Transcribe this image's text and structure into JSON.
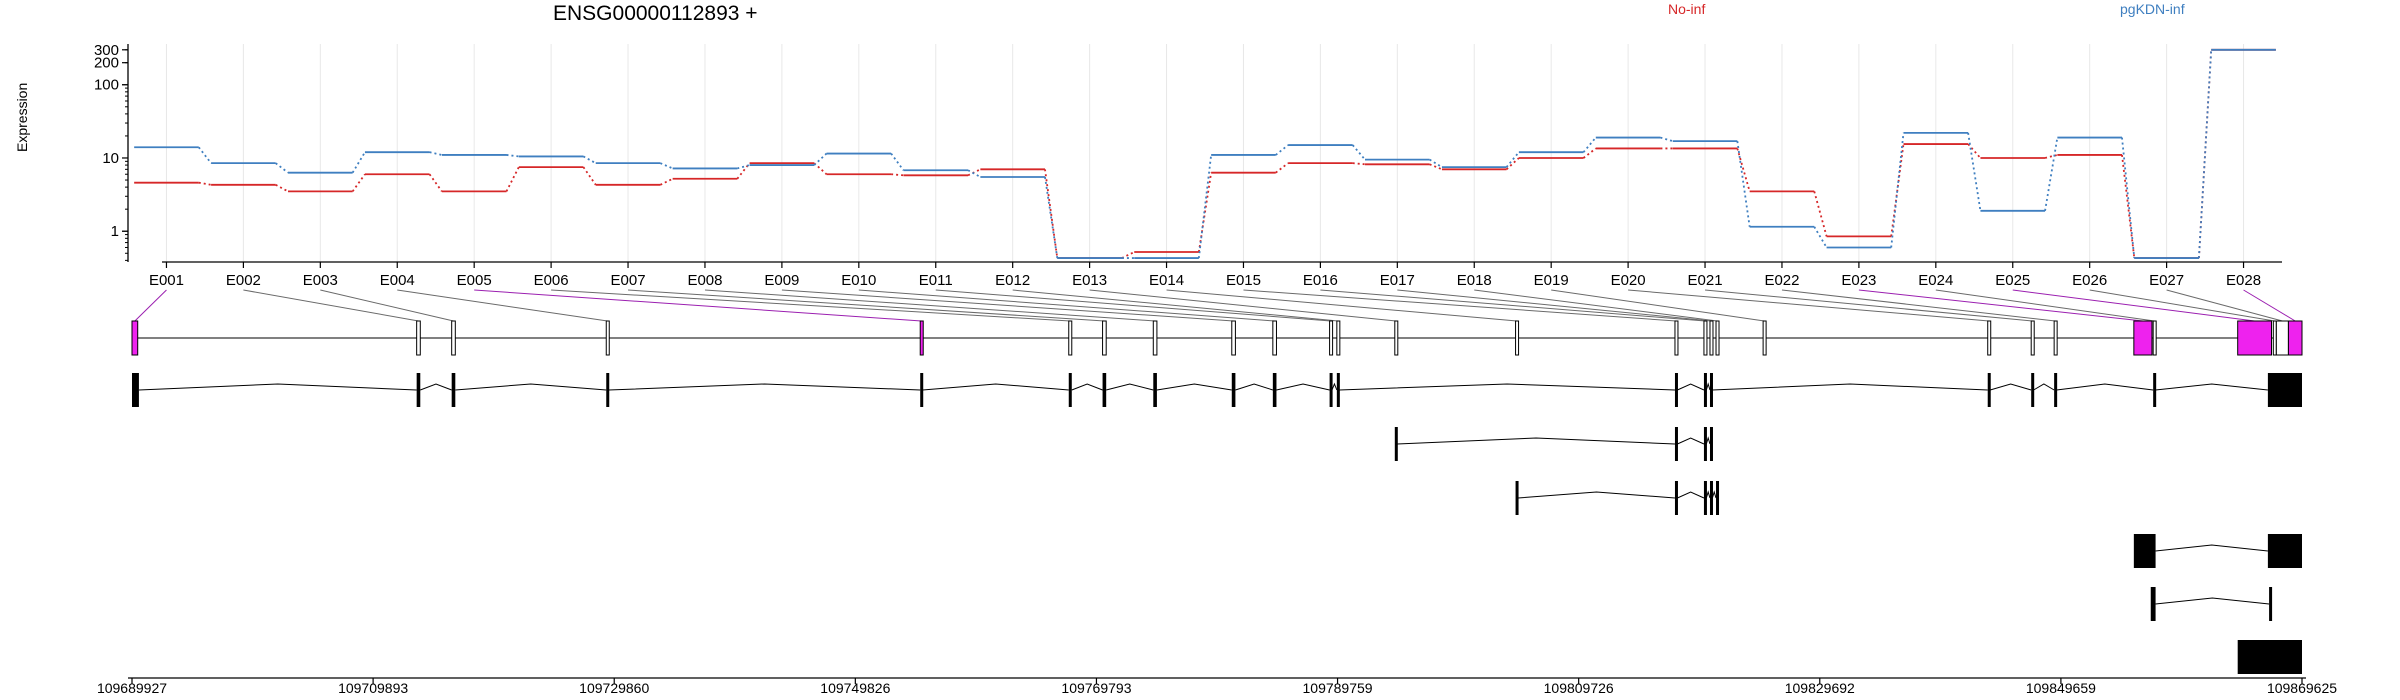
{
  "title": "ENSG00000112893 +",
  "ylabel": "Expression",
  "legend": [
    {
      "label": "No-inf",
      "color": "#d62728"
    },
    {
      "label": "pgKDN-inf",
      "color": "#3f7fc0"
    }
  ],
  "chart_data": {
    "type": "line",
    "title": "ENSG00000112893 +",
    "ylabel": "Expression",
    "yscale": "log",
    "ylim": [
      0.38,
      360
    ],
    "yticks": [
      1,
      10,
      100,
      200,
      300
    ],
    "yticklabels": [
      "1",
      "10",
      "100",
      "200",
      "300"
    ],
    "categories": [
      "E001",
      "E002",
      "E003",
      "E004",
      "E005",
      "E006",
      "E007",
      "E008",
      "E009",
      "E010",
      "E011",
      "E012",
      "E013",
      "E014",
      "E015",
      "E016",
      "E017",
      "E018",
      "E019",
      "E020",
      "E021",
      "E022",
      "E023",
      "E024",
      "E025",
      "E026",
      "E027",
      "E028"
    ],
    "series": [
      {
        "name": "No-inf",
        "color": "#d62728",
        "values": [
          4.6,
          4.3,
          3.5,
          6.0,
          3.5,
          7.5,
          4.3,
          5.2,
          8.5,
          6.0,
          5.8,
          7.0,
          0.43,
          0.52,
          6.3,
          8.5,
          8.2,
          7.0,
          10.0,
          13.5,
          13.5,
          3.5,
          0.85,
          15.5,
          10.0,
          11.0,
          0.43,
          300
        ]
      },
      {
        "name": "pgKDN-inf",
        "color": "#3f7fc0",
        "values": [
          14.0,
          8.5,
          6.3,
          12.0,
          11.0,
          10.5,
          8.5,
          7.2,
          8.0,
          11.5,
          6.8,
          5.5,
          0.43,
          0.43,
          11.0,
          15.0,
          9.5,
          7.5,
          12.0,
          19.0,
          17.0,
          1.15,
          0.6,
          22.0,
          1.9,
          19.0,
          0.43,
          300
        ]
      }
    ],
    "grid": true
  },
  "gene_model": {
    "coord_range": [
      109689927,
      109869625
    ],
    "coord_ticks": [
      109689927,
      109709893,
      109729860,
      109749826,
      109769793,
      109789759,
      109809726,
      109829692,
      109849659,
      109869625
    ],
    "coord_labels": [
      "109689927",
      "109709893",
      "109729860",
      "109749826",
      "109769793",
      "109789759",
      "109809726",
      "109829692",
      "109849659",
      "109869625"
    ],
    "exon_bins": [
      [
        109689927,
        109690400
      ],
      [
        109713500,
        109713800
      ],
      [
        109716400,
        109716700
      ],
      [
        109729200,
        109729400
      ],
      [
        109755200,
        109755400
      ],
      [
        109767500,
        109767750
      ],
      [
        109770300,
        109770600
      ],
      [
        109774500,
        109774800
      ],
      [
        109781000,
        109781300
      ],
      [
        109784400,
        109784700
      ],
      [
        109789100,
        109789300
      ],
      [
        109789700,
        109789900
      ],
      [
        109794500,
        109794700
      ],
      [
        109804500,
        109804700
      ],
      [
        109817700,
        109817900
      ],
      [
        109820100,
        109820300
      ],
      [
        109820600,
        109820800
      ],
      [
        109821100,
        109821300
      ],
      [
        109825000,
        109825200
      ],
      [
        109843600,
        109843800
      ],
      [
        109847200,
        109847400
      ],
      [
        109849100,
        109849300
      ],
      [
        109855700,
        109857200
      ],
      [
        109857300,
        109857500
      ],
      [
        109864300,
        109867100
      ],
      [
        109867250,
        109867450
      ],
      [
        109867500,
        109868500
      ],
      [
        109868500,
        109869625
      ]
    ],
    "highlight_bins": [
      0,
      4,
      22,
      24,
      27
    ],
    "highlight_color": "#ee22ee",
    "transcripts": [
      {
        "exons": [
          [
            109689927,
            109690500
          ],
          [
            109713500,
            109713800
          ],
          [
            109716400,
            109716700
          ],
          [
            109729200,
            109729400
          ],
          [
            109755200,
            109755400
          ],
          [
            109767500,
            109767750
          ],
          [
            109770300,
            109770600
          ],
          [
            109774500,
            109774800
          ],
          [
            109781000,
            109781300
          ],
          [
            109784400,
            109784700
          ],
          [
            109789100,
            109789300
          ],
          [
            109789700,
            109789900
          ],
          [
            109817700,
            109817900
          ],
          [
            109820100,
            109820300
          ],
          [
            109820600,
            109820800
          ],
          [
            109843600,
            109843800
          ],
          [
            109847200,
            109847400
          ],
          [
            109849100,
            109849300
          ],
          [
            109857300,
            109857500
          ],
          [
            109866900,
            109867100
          ],
          [
            109866800,
            109869625
          ]
        ]
      },
      {
        "exons": [
          [
            109794500,
            109794700
          ],
          [
            109817700,
            109817900
          ],
          [
            109820100,
            109820300
          ],
          [
            109820600,
            109820800
          ]
        ]
      },
      {
        "exons": [
          [
            109804500,
            109804700
          ],
          [
            109817700,
            109817900
          ],
          [
            109820100,
            109820300
          ],
          [
            109820600,
            109820800
          ],
          [
            109821100,
            109821300
          ]
        ]
      },
      {
        "exons": [
          [
            109855700,
            109857500
          ],
          [
            109866900,
            109867100
          ],
          [
            109866800,
            109869625
          ]
        ]
      },
      {
        "exons": [
          [
            109857100,
            109857500
          ],
          [
            109866900,
            109867100
          ]
        ]
      },
      {
        "exons": [
          [
            109864300,
            109867100
          ],
          [
            109866800,
            109869625
          ]
        ]
      }
    ]
  }
}
